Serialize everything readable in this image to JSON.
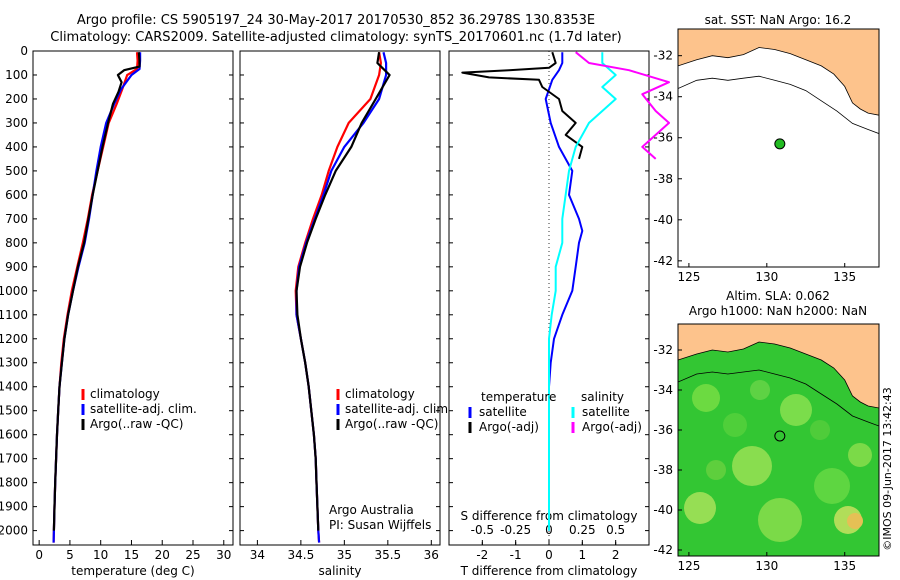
{
  "header": {
    "line1": "Argo profile: CS 5905197_24 30-May-2017 20170530_852 36.2978S 130.8353E",
    "line2": "Climatology: CARS2009. Satellite-adjusted climatology: synTS_20170601.nc (1.7d later)"
  },
  "side_credit": "©IMOS 09-Jun-2017 13:42:43",
  "chart_data": [
    {
      "id": "temperature",
      "type": "line",
      "xlabel": "temperature (deg C)",
      "ylabel": "",
      "xlim": [
        -1,
        31.5
      ],
      "ylim": [
        2060,
        0
      ],
      "xticks": [
        0,
        5,
        10,
        15,
        20,
        25,
        30
      ],
      "yticks": [
        0,
        100,
        200,
        300,
        400,
        500,
        600,
        700,
        800,
        900,
        1000,
        1100,
        1200,
        1300,
        1400,
        1500,
        1600,
        1700,
        1800,
        1900,
        2000
      ],
      "legend": {
        "position": "lower-middle",
        "entries": [
          "climatology",
          "satellite-adj. clim.",
          "Argo(..raw -QC)"
        ]
      },
      "series": [
        {
          "name": "climatology",
          "color": "#ff0000",
          "points": [
            [
              15.9,
              5
            ],
            [
              16.0,
              40
            ],
            [
              15.9,
              75
            ],
            [
              14.3,
              100
            ],
            [
              13.5,
              160
            ],
            [
              12.6,
              220
            ],
            [
              11.3,
              300
            ],
            [
              10.4,
              400
            ],
            [
              9.5,
              500
            ],
            [
              8.6,
              600
            ],
            [
              7.9,
              700
            ],
            [
              7.1,
              800
            ],
            [
              6.2,
              900
            ],
            [
              5.3,
              1000
            ],
            [
              4.6,
              1100
            ],
            [
              4.0,
              1200
            ],
            [
              3.6,
              1300
            ],
            [
              3.3,
              1400
            ],
            [
              3.1,
              1500
            ],
            [
              2.9,
              1600
            ],
            [
              2.75,
              1700
            ],
            [
              2.6,
              1800
            ],
            [
              2.5,
              1900
            ],
            [
              2.4,
              2000
            ],
            [
              2.35,
              2050
            ]
          ]
        },
        {
          "name": "satellite-adj. clim.",
          "color": "#0000ff",
          "points": [
            [
              16.4,
              5
            ],
            [
              16.4,
              40
            ],
            [
              16.3,
              75
            ],
            [
              15.0,
              100
            ],
            [
              13.3,
              160
            ],
            [
              12.2,
              220
            ],
            [
              10.9,
              300
            ],
            [
              10.0,
              400
            ],
            [
              9.3,
              500
            ],
            [
              8.7,
              600
            ],
            [
              8.1,
              700
            ],
            [
              7.4,
              800
            ],
            [
              6.4,
              900
            ],
            [
              5.5,
              1000
            ],
            [
              4.7,
              1100
            ],
            [
              4.1,
              1200
            ],
            [
              3.7,
              1300
            ],
            [
              3.3,
              1400
            ],
            [
              3.1,
              1500
            ],
            [
              2.9,
              1600
            ],
            [
              2.75,
              1700
            ],
            [
              2.6,
              1800
            ],
            [
              2.5,
              1900
            ],
            [
              2.4,
              2000
            ],
            [
              2.35,
              2050
            ]
          ]
        },
        {
          "name": "Argo(..raw -QC)",
          "color": "#000000",
          "points": [
            [
              16.2,
              5
            ],
            [
              16.3,
              40
            ],
            [
              16.3,
              65
            ],
            [
              13.8,
              80
            ],
            [
              12.8,
              100
            ],
            [
              13.4,
              130
            ],
            [
              12.9,
              170
            ],
            [
              12.0,
              220
            ],
            [
              11.2,
              300
            ],
            [
              10.3,
              400
            ],
            [
              9.5,
              500
            ],
            [
              8.7,
              600
            ],
            [
              8.0,
              700
            ],
            [
              7.3,
              800
            ],
            [
              6.3,
              900
            ],
            [
              5.5,
              1000
            ],
            [
              4.7,
              1100
            ],
            [
              4.1,
              1200
            ],
            [
              3.7,
              1300
            ],
            [
              3.3,
              1400
            ],
            [
              3.1,
              1500
            ],
            [
              2.9,
              1600
            ],
            [
              2.75,
              1700
            ],
            [
              2.6,
              1800
            ],
            [
              2.5,
              1900
            ],
            [
              2.4,
              2000
            ]
          ]
        }
      ]
    },
    {
      "id": "salinity",
      "type": "line",
      "xlabel": "salinity",
      "ylabel": "",
      "xlim": [
        33.8,
        36.1
      ],
      "ylim": [
        2060,
        0
      ],
      "xticks": [
        34,
        34.5,
        35,
        35.5,
        36
      ],
      "xtick_labels": [
        "34",
        "34.5",
        "35",
        "35.5",
        "36"
      ],
      "legend": {
        "position": "lower-right",
        "entries": [
          "climatology",
          "satellite-adj. clim.",
          "Argo(..raw -QC)"
        ]
      },
      "annotations": [
        "Argo Australia",
        "PI: Susan Wijffels"
      ],
      "series": [
        {
          "name": "climatology",
          "color": "#ff0000",
          "points": [
            [
              35.4,
              5
            ],
            [
              35.42,
              50
            ],
            [
              35.4,
              100
            ],
            [
              35.3,
              200
            ],
            [
              35.05,
              300
            ],
            [
              34.92,
              400
            ],
            [
              34.82,
              500
            ],
            [
              34.74,
              600
            ],
            [
              34.64,
              700
            ],
            [
              34.55,
              800
            ],
            [
              34.47,
              900
            ],
            [
              34.44,
              1000
            ],
            [
              34.45,
              1100
            ],
            [
              34.5,
              1200
            ],
            [
              34.55,
              1300
            ],
            [
              34.59,
              1400
            ],
            [
              34.62,
              1500
            ],
            [
              34.65,
              1600
            ],
            [
              34.67,
              1700
            ],
            [
              34.68,
              1800
            ],
            [
              34.69,
              1900
            ],
            [
              34.7,
              2000
            ],
            [
              34.71,
              2050
            ]
          ]
        },
        {
          "name": "satellite-adj. clim.",
          "color": "#0000ff",
          "points": [
            [
              35.45,
              5
            ],
            [
              35.48,
              50
            ],
            [
              35.48,
              100
            ],
            [
              35.4,
              200
            ],
            [
              35.22,
              300
            ],
            [
              35.0,
              400
            ],
            [
              34.85,
              500
            ],
            [
              34.76,
              600
            ],
            [
              34.66,
              700
            ],
            [
              34.56,
              800
            ],
            [
              34.48,
              900
            ],
            [
              34.45,
              1000
            ],
            [
              34.45,
              1100
            ],
            [
              34.5,
              1200
            ],
            [
              34.55,
              1300
            ],
            [
              34.59,
              1400
            ],
            [
              34.62,
              1500
            ],
            [
              34.65,
              1600
            ],
            [
              34.67,
              1700
            ],
            [
              34.68,
              1800
            ],
            [
              34.69,
              1900
            ],
            [
              34.7,
              2000
            ],
            [
              34.71,
              2050
            ]
          ]
        },
        {
          "name": "Argo(..raw -QC)",
          "color": "#000000",
          "points": [
            [
              35.4,
              5
            ],
            [
              35.38,
              50
            ],
            [
              35.52,
              100
            ],
            [
              35.36,
              200
            ],
            [
              35.2,
              300
            ],
            [
              35.08,
              400
            ],
            [
              34.9,
              500
            ],
            [
              34.78,
              600
            ],
            [
              34.67,
              700
            ],
            [
              34.57,
              800
            ],
            [
              34.49,
              900
            ],
            [
              34.45,
              1000
            ],
            [
              34.46,
              1100
            ],
            [
              34.5,
              1200
            ],
            [
              34.55,
              1300
            ],
            [
              34.59,
              1400
            ],
            [
              34.62,
              1500
            ],
            [
              34.65,
              1600
            ],
            [
              34.67,
              1700
            ],
            [
              34.68,
              1800
            ],
            [
              34.69,
              1900
            ],
            [
              34.7,
              2000
            ]
          ]
        }
      ]
    },
    {
      "id": "difference",
      "type": "line",
      "xlabel": "T difference from climatology",
      "x2label": "S difference from climatology",
      "xlim": [
        -3,
        3
      ],
      "ylim": [
        2060,
        0
      ],
      "xticks": [
        -2,
        -1,
        0,
        1,
        2
      ],
      "x2ticks": [
        -0.5,
        -0.25,
        0,
        0.25,
        0.5
      ],
      "legend": {
        "position": "lower-middle",
        "headers": [
          "temperature",
          "salinity"
        ],
        "entries": [
          "satellite",
          "Argo(-adj)",
          "satellite",
          "Argo(-adj)"
        ]
      },
      "series": [
        {
          "name": "satellite",
          "group": "temperature",
          "color": "#0000ff",
          "points": [
            [
              0.4,
              5
            ],
            [
              0.4,
              50
            ],
            [
              0.3,
              80
            ],
            [
              0.1,
              120
            ],
            [
              -0.1,
              200
            ],
            [
              0.05,
              300
            ],
            [
              0.3,
              400
            ],
            [
              0.7,
              500
            ],
            [
              0.6,
              600
            ],
            [
              0.9,
              700
            ],
            [
              1.0,
              750
            ],
            [
              0.9,
              800
            ],
            [
              0.8,
              900
            ],
            [
              0.7,
              1000
            ],
            [
              0.4,
              1100
            ],
            [
              0.15,
              1200
            ],
            [
              0.05,
              1300
            ],
            [
              0.0,
              1400
            ],
            [
              0.0,
              1500
            ],
            [
              0.0,
              1600
            ],
            [
              0.0,
              1800
            ],
            [
              0.0,
              2000
            ]
          ]
        },
        {
          "name": "Argo(-adj)",
          "group": "temperature",
          "color": "#000000",
          "points": [
            [
              0.1,
              5
            ],
            [
              0.2,
              50
            ],
            [
              0.0,
              70
            ],
            [
              -1.2,
              80
            ],
            [
              -2.6,
              90
            ],
            [
              -1.8,
              110
            ],
            [
              -0.3,
              120
            ],
            [
              -0.2,
              150
            ],
            [
              0.3,
              200
            ],
            [
              0.4,
              250
            ],
            [
              0.8,
              300
            ],
            [
              0.5,
              350
            ],
            [
              1.0,
              400
            ],
            [
              0.9,
              450
            ]
          ]
        },
        {
          "name": "satellite",
          "group": "salinity",
          "color": "#00ffff",
          "points": [
            [
              0.4,
              5
            ],
            [
              0.4,
              50
            ],
            [
              0.5,
              100
            ],
            [
              0.4,
              150
            ],
            [
              0.5,
              200
            ],
            [
              0.3,
              300
            ],
            [
              0.2,
              400
            ],
            [
              0.15,
              500
            ],
            [
              0.1,
              700
            ],
            [
              0.1,
              800
            ],
            [
              0.05,
              900
            ],
            [
              0.05,
              1000
            ],
            [
              0.02,
              1100
            ],
            [
              0.0,
              1200
            ],
            [
              0.0,
              1400
            ],
            [
              0.0,
              1600
            ],
            [
              0.0,
              1800
            ],
            [
              0.0,
              2000
            ]
          ]
        },
        {
          "name": "Argo(-adj)",
          "group": "salinity",
          "color": "#ff00ff",
          "points": [
            [
              0.2,
              5
            ],
            [
              0.3,
              50
            ],
            [
              0.6,
              80
            ],
            [
              0.9,
              130
            ],
            [
              0.7,
              180
            ],
            [
              0.8,
              250
            ],
            [
              0.9,
              300
            ],
            [
              0.7,
              400
            ],
            [
              0.8,
              450
            ]
          ]
        }
      ]
    },
    {
      "id": "map-sst",
      "type": "map",
      "title": "sat. SST: NaN Argo: 16.2",
      "xlim": [
        124.3,
        137.2
      ],
      "ylim": [
        -42.3,
        -30.7
      ],
      "xticks": [
        125,
        130,
        135
      ],
      "yticks": [
        -32,
        -34,
        -36,
        -38,
        -40,
        -42
      ],
      "marker": {
        "lon": 130.8353,
        "lat": -36.2978,
        "color": "#22bb22"
      }
    },
    {
      "id": "map-sla",
      "type": "map",
      "title_line1": "Altim. SLA: 0.062",
      "title_line2": "Argo h1000: NaN h2000: NaN",
      "xlim": [
        124.3,
        137.2
      ],
      "ylim": [
        -42.3,
        -30.7
      ],
      "xticks": [
        125,
        130,
        135
      ],
      "yticks": [
        -32,
        -34,
        -36,
        -38,
        -40,
        -42
      ],
      "marker": {
        "lon": 130.8353,
        "lat": -36.2978,
        "color": "#229922"
      }
    }
  ],
  "colors": {
    "land": "#fdc38c",
    "ocean_field": "#3cc83c"
  }
}
